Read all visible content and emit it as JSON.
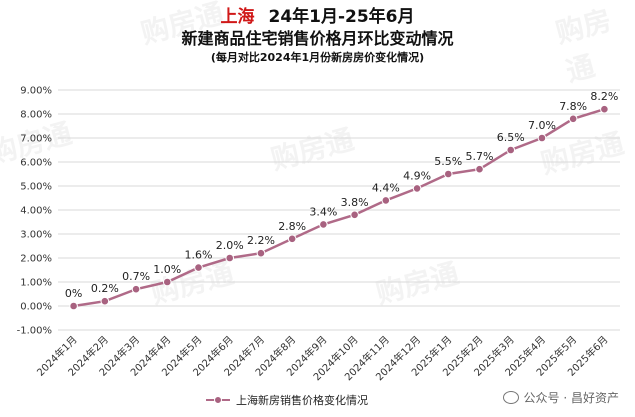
{
  "title": {
    "city": "上海",
    "period": "24年1月-25年6月",
    "line2": "新建商品住宅销售价格月环比变动情况",
    "subtitle": "(每月对比2024年1月份新房房价变化情况)"
  },
  "legend": {
    "label": "上海新房销售价格变化情况"
  },
  "footer": {
    "text": "公众号 · 昌好资产"
  },
  "watermark": {
    "text": "购房通"
  },
  "colors": {
    "line": "#b06a88",
    "marker": "#a86280",
    "title_city": "#d01818"
  },
  "chart_data": {
    "type": "line",
    "categories": [
      "2024年1月",
      "2024年2月",
      "2024年3月",
      "2024年4月",
      "2024年5月",
      "2024年6月",
      "2024年7月",
      "2024年8月",
      "2024年9月",
      "2024年10月",
      "2024年11月",
      "2024年12月",
      "2025年1月",
      "2025年2月",
      "2025年3月",
      "2025年4月",
      "2025年5月",
      "2025年6月"
    ],
    "series": [
      {
        "name": "上海新房销售价格变化情况",
        "values": [
          0.0,
          0.2,
          0.7,
          1.0,
          1.6,
          2.0,
          2.2,
          2.8,
          3.4,
          3.8,
          4.4,
          4.9,
          5.5,
          5.7,
          6.5,
          7.0,
          7.8,
          8.2
        ],
        "labels": [
          "0%",
          "0.2%",
          "0.7%",
          "1.0%",
          "1.6%",
          "2.0%",
          "2.2%",
          "2.8%",
          "3.4%",
          "3.8%",
          "4.4%",
          "4.9%",
          "5.5%",
          "5.7%",
          "6.5%",
          "7.0%",
          "7.8%",
          "8.2%"
        ]
      }
    ],
    "yticks": [
      "-1.00%",
      "0.00%",
      "1.00%",
      "2.00%",
      "3.00%",
      "4.00%",
      "5.00%",
      "6.00%",
      "7.00%",
      "8.00%",
      "9.00%"
    ],
    "ylim": [
      -1,
      9
    ],
    "grid": true,
    "legend_position": "bottom"
  }
}
